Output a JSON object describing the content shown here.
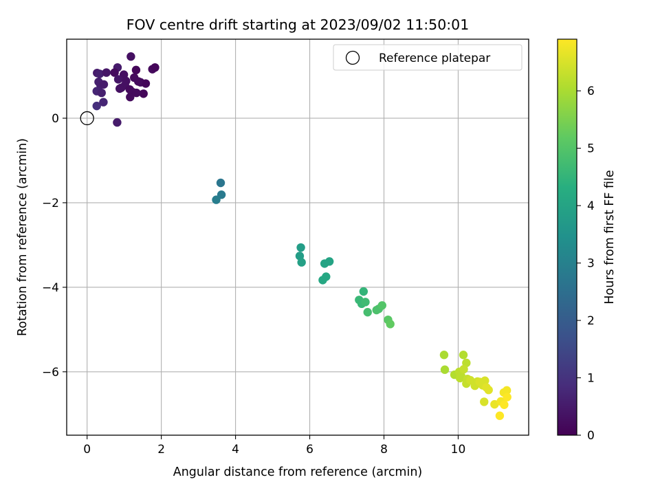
{
  "chart_data": {
    "type": "scatter",
    "title": "FOV centre drift starting at 2023/09/02 11:50:01",
    "xlabel": "Angular distance from reference (arcmin)",
    "ylabel": "Rotation from reference (arcmin)",
    "xlim": [
      -0.55,
      11.9
    ],
    "ylim": [
      -7.5,
      1.87
    ],
    "xticks": [
      0,
      2,
      4,
      6,
      8,
      10
    ],
    "xtick_labels": [
      "0",
      "2",
      "4",
      "6",
      "8",
      "10"
    ],
    "yticks": [
      -6,
      -4,
      -2,
      0
    ],
    "ytick_labels": [
      "−6",
      "−4",
      "−2",
      "0"
    ],
    "grid": true,
    "legend": {
      "position": "top-right",
      "entries": [
        "Reference platepar"
      ]
    },
    "reference_point": {
      "x": 0,
      "y": 0,
      "marker": "open-circle"
    },
    "colorbar": {
      "label": "Hours from first FF file",
      "range": [
        0,
        6.9
      ],
      "ticks": [
        0,
        1,
        2,
        3,
        4,
        5,
        6
      ],
      "tick_labels": [
        "0",
        "1",
        "2",
        "3",
        "4",
        "5",
        "6"
      ],
      "colormap": "viridis"
    },
    "points": [
      {
        "x": 1.18,
        "y": 1.46,
        "h": 0.3
      },
      {
        "x": 0.27,
        "y": 1.07,
        "h": 0.5
      },
      {
        "x": 0.34,
        "y": 1.05,
        "h": 0.6
      },
      {
        "x": 0.52,
        "y": 1.08,
        "h": 0.4
      },
      {
        "x": 0.82,
        "y": 1.2,
        "h": 0.5
      },
      {
        "x": 0.99,
        "y": 1.03,
        "h": 0.3
      },
      {
        "x": 0.74,
        "y": 1.08,
        "h": 0.2
      },
      {
        "x": 1.27,
        "y": 0.96,
        "h": 0.2
      },
      {
        "x": 1.32,
        "y": 1.14,
        "h": 0.1
      },
      {
        "x": 1.76,
        "y": 1.16,
        "h": 0.2
      },
      {
        "x": 1.83,
        "y": 1.2,
        "h": 0.1
      },
      {
        "x": 0.31,
        "y": 0.86,
        "h": 0.6
      },
      {
        "x": 0.36,
        "y": 0.79,
        "h": 0.6
      },
      {
        "x": 0.45,
        "y": 0.8,
        "h": 0.5
      },
      {
        "x": 0.26,
        "y": 0.64,
        "h": 0.7
      },
      {
        "x": 0.39,
        "y": 0.6,
        "h": 0.6
      },
      {
        "x": 0.84,
        "y": 0.92,
        "h": 0.4
      },
      {
        "x": 0.92,
        "y": 0.72,
        "h": 0.3
      },
      {
        "x": 1.02,
        "y": 0.78,
        "h": 0.3
      },
      {
        "x": 0.88,
        "y": 0.7,
        "h": 0.3
      },
      {
        "x": 1.15,
        "y": 0.68,
        "h": 0.2
      },
      {
        "x": 1.22,
        "y": 0.62,
        "h": 0.2
      },
      {
        "x": 1.16,
        "y": 0.5,
        "h": 0.2
      },
      {
        "x": 1.44,
        "y": 0.85,
        "h": 0.2
      },
      {
        "x": 1.58,
        "y": 0.82,
        "h": 0.1
      },
      {
        "x": 1.52,
        "y": 0.58,
        "h": 0.1
      },
      {
        "x": 1.33,
        "y": 0.6,
        "h": 0.2
      },
      {
        "x": 0.26,
        "y": 0.29,
        "h": 0.9
      },
      {
        "x": 0.44,
        "y": 0.38,
        "h": 0.7
      },
      {
        "x": 0.81,
        "y": -0.1,
        "h": 0.5
      },
      {
        "x": 1.05,
        "y": 0.88,
        "h": 0.3
      },
      {
        "x": 1.38,
        "y": 0.87,
        "h": 0.2
      },
      {
        "x": 3.6,
        "y": -1.53,
        "h": 2.7
      },
      {
        "x": 3.62,
        "y": -1.81,
        "h": 2.8
      },
      {
        "x": 3.48,
        "y": -1.93,
        "h": 2.9
      },
      {
        "x": 5.76,
        "y": -3.06,
        "h": 3.8
      },
      {
        "x": 5.73,
        "y": -3.26,
        "h": 3.8
      },
      {
        "x": 5.78,
        "y": -3.41,
        "h": 3.9
      },
      {
        "x": 6.4,
        "y": -3.44,
        "h": 4.0
      },
      {
        "x": 6.53,
        "y": -3.39,
        "h": 4.0
      },
      {
        "x": 6.44,
        "y": -3.75,
        "h": 4.1
      },
      {
        "x": 6.35,
        "y": -3.83,
        "h": 4.1
      },
      {
        "x": 7.45,
        "y": -4.1,
        "h": 4.5
      },
      {
        "x": 7.33,
        "y": -4.3,
        "h": 4.6
      },
      {
        "x": 7.4,
        "y": -4.39,
        "h": 4.6
      },
      {
        "x": 7.5,
        "y": -4.35,
        "h": 4.7
      },
      {
        "x": 7.56,
        "y": -4.59,
        "h": 4.8
      },
      {
        "x": 7.86,
        "y": -4.51,
        "h": 4.9
      },
      {
        "x": 7.8,
        "y": -4.54,
        "h": 4.9
      },
      {
        "x": 7.95,
        "y": -4.43,
        "h": 5.0
      },
      {
        "x": 8.11,
        "y": -4.77,
        "h": 5.1
      },
      {
        "x": 8.17,
        "y": -4.87,
        "h": 5.2
      },
      {
        "x": 9.62,
        "y": -5.6,
        "h": 6.0
      },
      {
        "x": 9.64,
        "y": -5.95,
        "h": 6.0
      },
      {
        "x": 9.9,
        "y": -6.07,
        "h": 6.1
      },
      {
        "x": 10.03,
        "y": -6.0,
        "h": 6.2
      },
      {
        "x": 10.08,
        "y": -6.1,
        "h": 6.2
      },
      {
        "x": 10.05,
        "y": -6.15,
        "h": 6.2
      },
      {
        "x": 10.14,
        "y": -5.6,
        "h": 6.1
      },
      {
        "x": 10.22,
        "y": -5.79,
        "h": 6.2
      },
      {
        "x": 10.15,
        "y": -5.94,
        "h": 6.3
      },
      {
        "x": 10.25,
        "y": -6.17,
        "h": 6.3
      },
      {
        "x": 10.22,
        "y": -6.28,
        "h": 6.3
      },
      {
        "x": 10.33,
        "y": -6.2,
        "h": 6.4
      },
      {
        "x": 10.45,
        "y": -6.33,
        "h": 6.4
      },
      {
        "x": 10.52,
        "y": -6.23,
        "h": 6.4
      },
      {
        "x": 10.58,
        "y": -6.24,
        "h": 6.5
      },
      {
        "x": 10.66,
        "y": -6.32,
        "h": 6.5
      },
      {
        "x": 10.72,
        "y": -6.21,
        "h": 6.5
      },
      {
        "x": 10.76,
        "y": -6.37,
        "h": 6.6
      },
      {
        "x": 10.82,
        "y": -6.43,
        "h": 6.6
      },
      {
        "x": 10.7,
        "y": -6.71,
        "h": 6.5
      },
      {
        "x": 10.98,
        "y": -6.77,
        "h": 6.7
      },
      {
        "x": 11.15,
        "y": -6.7,
        "h": 6.8
      },
      {
        "x": 11.23,
        "y": -6.49,
        "h": 6.8
      },
      {
        "x": 11.31,
        "y": -6.44,
        "h": 6.8
      },
      {
        "x": 11.32,
        "y": -6.6,
        "h": 6.9
      },
      {
        "x": 11.24,
        "y": -6.78,
        "h": 6.9
      },
      {
        "x": 11.12,
        "y": -7.04,
        "h": 6.9
      }
    ]
  }
}
